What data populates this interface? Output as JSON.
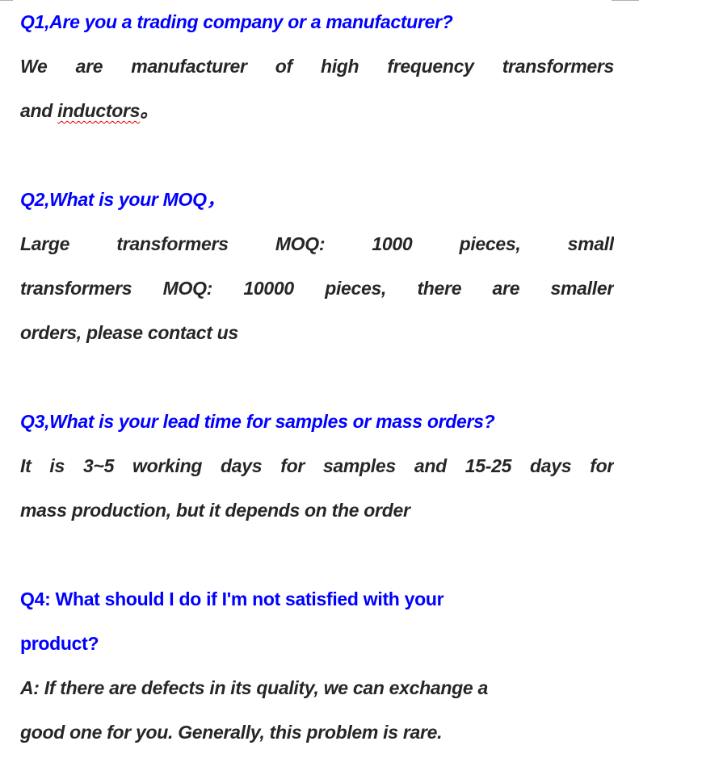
{
  "faq": [
    {
      "question": [
        "Q1,Are you a trading company or a manufacturer?"
      ],
      "answer": [
        "We are manufacturer of high frequency transformers",
        "and",
        "inductors",
        "。"
      ]
    },
    {
      "question": [
        "Q2,What is your MOQ，"
      ],
      "answer": [
        "Large transformers MOQ: 1000 pieces, small",
        "transformers MOQ: 10000 pieces, there are smaller",
        "orders, please contact us"
      ]
    },
    {
      "question": [
        "Q3,What is your lead time for samples or mass orders?"
      ],
      "answer": [
        "It is 3~5 working days for samples and 15-25 days for",
        "mass production, but it depends on the order"
      ]
    },
    {
      "question": [
        "Q4: What should I do if I'm not satisfied with your",
        "product?"
      ],
      "answer": [
        "A: If there are defects in its quality, we can exchange a",
        "good one for you. Generally, this problem is rare."
      ]
    }
  ],
  "colors": {
    "question": "#0000ff",
    "answer": "#262626",
    "spellcheck": "#e00000"
  }
}
